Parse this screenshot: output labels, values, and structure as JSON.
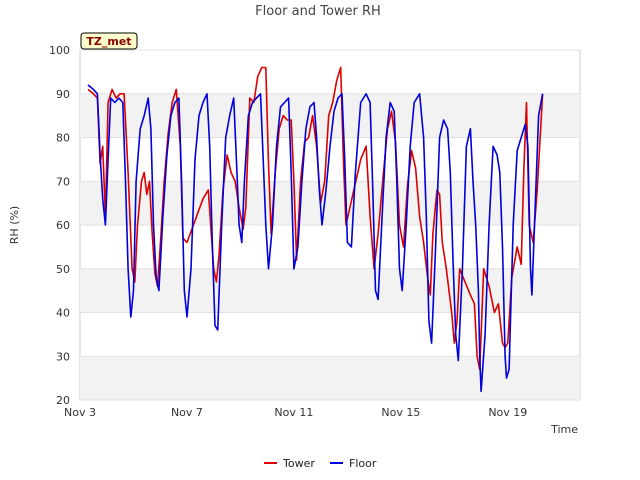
{
  "chart_data": {
    "type": "line",
    "title": "Floor and Tower RH",
    "xlabel": "Time",
    "ylabel": "RH (%)",
    "badge": "TZ_met",
    "xlim": [
      3,
      21.7
    ],
    "ylim": [
      20,
      100
    ],
    "x_ticks": [
      3,
      7,
      11,
      15,
      19
    ],
    "x_tick_labels": [
      "Nov 3",
      "Nov 7",
      "Nov 11",
      "Nov 15",
      "Nov 19"
    ],
    "y_ticks": [
      20,
      30,
      40,
      50,
      60,
      70,
      80,
      90,
      100
    ],
    "y_tick_labels": [
      "20",
      "30",
      "40",
      "50",
      "60",
      "70",
      "80",
      "90",
      "100"
    ],
    "grid": true,
    "legend_position": "bottom-center",
    "series": [
      {
        "name": "Tower",
        "color": "#dd0000",
        "points": [
          [
            3.3,
            91
          ],
          [
            3.5,
            90
          ],
          [
            3.65,
            89
          ],
          [
            3.75,
            74
          ],
          [
            3.85,
            78
          ],
          [
            3.95,
            62
          ],
          [
            4.05,
            88
          ],
          [
            4.2,
            91
          ],
          [
            4.35,
            89
          ],
          [
            4.5,
            90
          ],
          [
            4.65,
            90
          ],
          [
            4.8,
            72
          ],
          [
            4.95,
            50
          ],
          [
            5.05,
            47
          ],
          [
            5.15,
            60
          ],
          [
            5.3,
            70
          ],
          [
            5.4,
            72
          ],
          [
            5.5,
            67
          ],
          [
            5.6,
            70
          ],
          [
            5.7,
            58
          ],
          [
            5.8,
            49
          ],
          [
            5.9,
            46
          ],
          [
            6.0,
            55
          ],
          [
            6.15,
            70
          ],
          [
            6.3,
            81
          ],
          [
            6.45,
            88
          ],
          [
            6.6,
            91
          ],
          [
            6.75,
            78
          ],
          [
            6.85,
            57
          ],
          [
            7.0,
            56
          ],
          [
            7.6,
            66
          ],
          [
            7.8,
            68
          ],
          [
            8.0,
            50
          ],
          [
            8.1,
            47
          ],
          [
            8.2,
            53
          ],
          [
            8.35,
            68
          ],
          [
            8.5,
            76
          ],
          [
            8.65,
            72
          ],
          [
            8.8,
            70
          ],
          [
            8.95,
            64
          ],
          [
            9.1,
            59
          ],
          [
            9.2,
            64
          ],
          [
            9.35,
            89
          ],
          [
            9.5,
            88
          ],
          [
            9.65,
            94
          ],
          [
            9.8,
            96
          ],
          [
            9.95,
            96
          ],
          [
            10.05,
            74
          ],
          [
            10.15,
            58
          ],
          [
            10.3,
            72
          ],
          [
            10.45,
            82
          ],
          [
            10.6,
            85
          ],
          [
            10.75,
            84
          ],
          [
            10.9,
            84
          ],
          [
            11.0,
            70
          ],
          [
            11.1,
            52
          ],
          [
            11.25,
            70
          ],
          [
            11.4,
            79
          ],
          [
            11.55,
            80
          ],
          [
            11.7,
            85
          ],
          [
            11.85,
            78
          ],
          [
            12.0,
            65
          ],
          [
            12.15,
            70
          ],
          [
            12.3,
            85
          ],
          [
            12.45,
            88
          ],
          [
            12.6,
            93
          ],
          [
            12.75,
            96
          ],
          [
            12.85,
            75
          ],
          [
            12.95,
            60
          ],
          [
            13.5,
            75
          ],
          [
            13.7,
            78
          ],
          [
            13.85,
            62
          ],
          [
            14.0,
            50
          ],
          [
            14.15,
            58
          ],
          [
            14.35,
            72
          ],
          [
            14.5,
            82
          ],
          [
            14.65,
            86
          ],
          [
            14.8,
            79
          ],
          [
            14.95,
            60
          ],
          [
            15.1,
            55
          ],
          [
            15.25,
            69
          ],
          [
            15.4,
            77
          ],
          [
            15.55,
            73
          ],
          [
            15.7,
            62
          ],
          [
            15.85,
            56
          ],
          [
            16.0,
            48
          ],
          [
            16.1,
            44
          ],
          [
            16.2,
            58
          ],
          [
            16.35,
            68
          ],
          [
            16.45,
            67
          ],
          [
            16.55,
            56
          ],
          [
            16.7,
            50
          ],
          [
            16.8,
            45
          ],
          [
            16.9,
            40
          ],
          [
            17.0,
            33
          ],
          [
            17.1,
            38
          ],
          [
            17.2,
            50
          ],
          [
            17.4,
            47
          ],
          [
            17.6,
            44
          ],
          [
            17.75,
            42
          ],
          [
            17.85,
            30
          ],
          [
            17.95,
            27
          ],
          [
            18.1,
            50
          ],
          [
            18.3,
            46
          ],
          [
            18.5,
            40
          ],
          [
            18.65,
            42
          ],
          [
            18.8,
            33
          ],
          [
            18.9,
            32
          ],
          [
            19.0,
            33
          ],
          [
            19.15,
            48
          ],
          [
            19.35,
            55
          ],
          [
            19.5,
            51
          ],
          [
            19.6,
            73
          ],
          [
            19.7,
            88
          ],
          [
            19.8,
            60
          ],
          [
            19.95,
            56
          ],
          [
            20.1,
            68
          ],
          [
            20.3,
            90
          ]
        ]
      },
      {
        "name": "Floor",
        "color": "#0000dd",
        "points": [
          [
            3.3,
            92
          ],
          [
            3.5,
            91
          ],
          [
            3.65,
            90
          ],
          [
            3.75,
            76
          ],
          [
            3.85,
            66
          ],
          [
            3.95,
            60
          ],
          [
            4.05,
            75
          ],
          [
            4.15,
            89
          ],
          [
            4.3,
            88
          ],
          [
            4.45,
            89
          ],
          [
            4.6,
            88
          ],
          [
            4.7,
            70
          ],
          [
            4.8,
            50
          ],
          [
            4.9,
            39
          ],
          [
            5.0,
            45
          ],
          [
            5.1,
            70
          ],
          [
            5.25,
            82
          ],
          [
            5.4,
            85
          ],
          [
            5.55,
            89
          ],
          [
            5.65,
            82
          ],
          [
            5.75,
            60
          ],
          [
            5.85,
            48
          ],
          [
            5.95,
            45
          ],
          [
            6.1,
            62
          ],
          [
            6.25,
            76
          ],
          [
            6.4,
            85
          ],
          [
            6.55,
            88
          ],
          [
            6.7,
            89
          ],
          [
            6.8,
            70
          ],
          [
            6.9,
            45
          ],
          [
            7.0,
            39
          ],
          [
            7.15,
            50
          ],
          [
            7.3,
            75
          ],
          [
            7.45,
            85
          ],
          [
            7.6,
            88
          ],
          [
            7.75,
            90
          ],
          [
            7.85,
            78
          ],
          [
            7.95,
            55
          ],
          [
            8.05,
            37
          ],
          [
            8.15,
            36
          ],
          [
            8.3,
            60
          ],
          [
            8.45,
            80
          ],
          [
            8.6,
            85
          ],
          [
            8.75,
            89
          ],
          [
            8.85,
            75
          ],
          [
            8.95,
            60
          ],
          [
            9.05,
            56
          ],
          [
            9.15,
            70
          ],
          [
            9.3,
            85
          ],
          [
            9.45,
            88
          ],
          [
            9.6,
            89
          ],
          [
            9.75,
            90
          ],
          [
            9.85,
            75
          ],
          [
            9.95,
            60
          ],
          [
            10.05,
            50
          ],
          [
            10.2,
            60
          ],
          [
            10.35,
            78
          ],
          [
            10.5,
            87
          ],
          [
            10.65,
            88
          ],
          [
            10.8,
            89
          ],
          [
            10.9,
            72
          ],
          [
            11.0,
            50
          ],
          [
            11.15,
            55
          ],
          [
            11.3,
            70
          ],
          [
            11.45,
            82
          ],
          [
            11.6,
            87
          ],
          [
            11.75,
            88
          ],
          [
            11.85,
            80
          ],
          [
            11.95,
            68
          ],
          [
            12.05,
            60
          ],
          [
            12.2,
            68
          ],
          [
            12.35,
            78
          ],
          [
            12.5,
            86
          ],
          [
            12.65,
            89
          ],
          [
            12.8,
            90
          ],
          [
            12.9,
            75
          ],
          [
            13.0,
            56
          ],
          [
            13.15,
            55
          ],
          [
            13.3,
            72
          ],
          [
            13.5,
            88
          ],
          [
            13.7,
            90
          ],
          [
            13.85,
            88
          ],
          [
            13.95,
            68
          ],
          [
            14.05,
            45
          ],
          [
            14.15,
            43
          ],
          [
            14.3,
            62
          ],
          [
            14.45,
            80
          ],
          [
            14.6,
            88
          ],
          [
            14.75,
            86
          ],
          [
            14.85,
            70
          ],
          [
            14.95,
            50
          ],
          [
            15.05,
            45
          ],
          [
            15.2,
            60
          ],
          [
            15.35,
            78
          ],
          [
            15.5,
            88
          ],
          [
            15.7,
            90
          ],
          [
            15.85,
            80
          ],
          [
            15.95,
            62
          ],
          [
            16.05,
            38
          ],
          [
            16.15,
            33
          ],
          [
            16.3,
            55
          ],
          [
            16.45,
            80
          ],
          [
            16.6,
            84
          ],
          [
            16.75,
            82
          ],
          [
            16.85,
            72
          ],
          [
            16.95,
            52
          ],
          [
            17.05,
            35
          ],
          [
            17.15,
            29
          ],
          [
            17.3,
            50
          ],
          [
            17.45,
            78
          ],
          [
            17.6,
            82
          ],
          [
            17.7,
            70
          ],
          [
            17.8,
            60
          ],
          [
            17.9,
            45
          ],
          [
            17.95,
            30
          ],
          [
            18.0,
            22
          ],
          [
            18.15,
            35
          ],
          [
            18.3,
            60
          ],
          [
            18.45,
            78
          ],
          [
            18.6,
            76
          ],
          [
            18.7,
            72
          ],
          [
            18.8,
            55
          ],
          [
            18.9,
            30
          ],
          [
            18.95,
            25
          ],
          [
            19.05,
            27
          ],
          [
            19.2,
            60
          ],
          [
            19.35,
            77
          ],
          [
            19.5,
            80
          ],
          [
            19.65,
            83
          ],
          [
            19.75,
            78
          ],
          [
            19.85,
            50
          ],
          [
            19.9,
            44
          ],
          [
            20.0,
            60
          ],
          [
            20.15,
            85
          ],
          [
            20.3,
            90
          ]
        ]
      }
    ]
  }
}
